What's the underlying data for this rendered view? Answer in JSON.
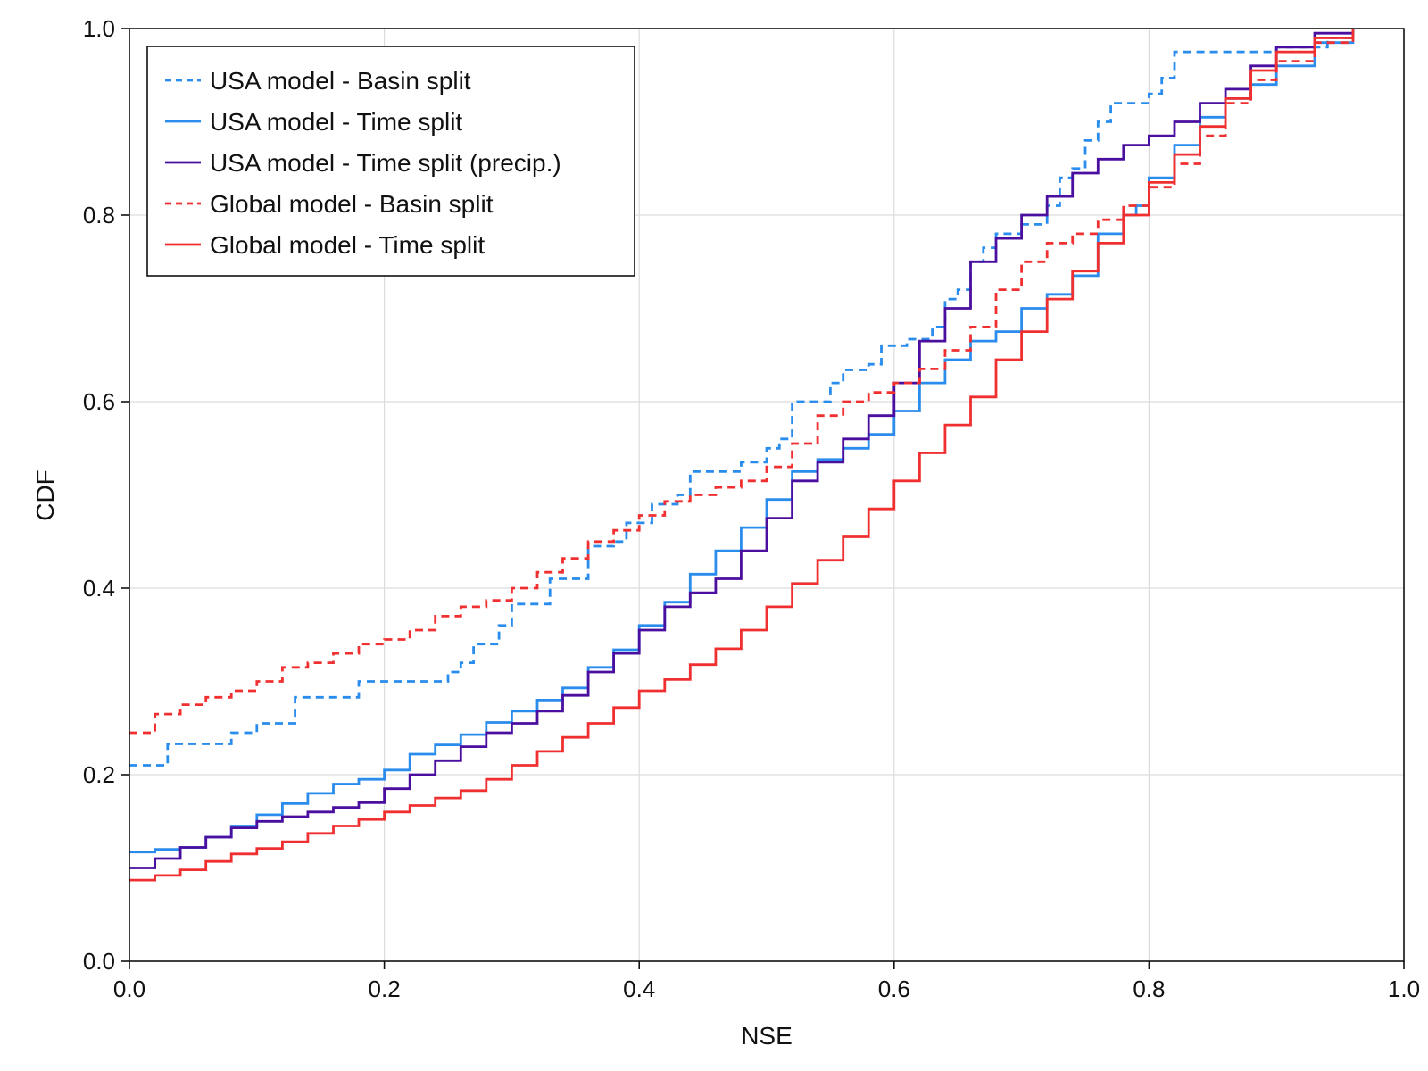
{
  "chart_data": {
    "type": "line",
    "xlabel": "NSE",
    "ylabel": "CDF",
    "xlim": [
      0,
      1
    ],
    "ylim": [
      0,
      1
    ],
    "xticks": [
      "0.0",
      "0.2",
      "0.4",
      "0.6",
      "0.8",
      "1.0"
    ],
    "yticks": [
      "0.0",
      "0.2",
      "0.4",
      "0.6",
      "0.8",
      "1.0"
    ],
    "grid": true,
    "legend_position": "top-left",
    "series": [
      {
        "name": "USA model - Basin split",
        "color": "#2a8cec",
        "dash": "dashed",
        "points": [
          [
            0.0,
            0.21
          ],
          [
            0.02,
            0.21
          ],
          [
            0.03,
            0.233
          ],
          [
            0.07,
            0.233
          ],
          [
            0.08,
            0.245
          ],
          [
            0.1,
            0.255
          ],
          [
            0.13,
            0.26
          ],
          [
            0.13,
            0.283
          ],
          [
            0.17,
            0.283
          ],
          [
            0.18,
            0.3
          ],
          [
            0.22,
            0.3
          ],
          [
            0.24,
            0.3
          ],
          [
            0.25,
            0.31
          ],
          [
            0.26,
            0.32
          ],
          [
            0.27,
            0.34
          ],
          [
            0.29,
            0.36
          ],
          [
            0.3,
            0.383
          ],
          [
            0.33,
            0.383
          ],
          [
            0.33,
            0.41
          ],
          [
            0.35,
            0.41
          ],
          [
            0.36,
            0.445
          ],
          [
            0.38,
            0.45
          ],
          [
            0.39,
            0.47
          ],
          [
            0.41,
            0.49
          ],
          [
            0.43,
            0.5
          ],
          [
            0.44,
            0.525
          ],
          [
            0.47,
            0.525
          ],
          [
            0.48,
            0.535
          ],
          [
            0.49,
            0.535
          ],
          [
            0.5,
            0.55
          ],
          [
            0.51,
            0.56
          ],
          [
            0.52,
            0.6
          ],
          [
            0.53,
            0.6
          ],
          [
            0.55,
            0.62
          ],
          [
            0.56,
            0.634
          ],
          [
            0.58,
            0.64
          ],
          [
            0.59,
            0.66
          ],
          [
            0.61,
            0.667
          ],
          [
            0.63,
            0.68
          ],
          [
            0.64,
            0.71
          ],
          [
            0.65,
            0.72
          ],
          [
            0.66,
            0.75
          ],
          [
            0.67,
            0.765
          ],
          [
            0.68,
            0.78
          ],
          [
            0.7,
            0.79
          ],
          [
            0.72,
            0.81
          ],
          [
            0.73,
            0.84
          ],
          [
            0.74,
            0.85
          ],
          [
            0.75,
            0.88
          ],
          [
            0.76,
            0.9
          ],
          [
            0.77,
            0.92
          ],
          [
            0.8,
            0.93
          ],
          [
            0.81,
            0.947
          ],
          [
            0.82,
            0.975
          ],
          [
            0.88,
            0.975
          ],
          [
            0.9,
            0.98
          ],
          [
            0.94,
            0.99
          ],
          [
            0.96,
            1.0
          ]
        ]
      },
      {
        "name": "USA model - Time split",
        "color": "#2a8cec",
        "dash": "solid",
        "points": [
          [
            0.0,
            0.117
          ],
          [
            0.02,
            0.12
          ],
          [
            0.04,
            0.122
          ],
          [
            0.06,
            0.133
          ],
          [
            0.08,
            0.145
          ],
          [
            0.1,
            0.157
          ],
          [
            0.12,
            0.169
          ],
          [
            0.14,
            0.18
          ],
          [
            0.16,
            0.19
          ],
          [
            0.18,
            0.195
          ],
          [
            0.2,
            0.205
          ],
          [
            0.22,
            0.222
          ],
          [
            0.24,
            0.232
          ],
          [
            0.26,
            0.243
          ],
          [
            0.28,
            0.256
          ],
          [
            0.3,
            0.268
          ],
          [
            0.32,
            0.28
          ],
          [
            0.34,
            0.293
          ],
          [
            0.36,
            0.315
          ],
          [
            0.38,
            0.334
          ],
          [
            0.4,
            0.36
          ],
          [
            0.42,
            0.385
          ],
          [
            0.44,
            0.415
          ],
          [
            0.46,
            0.44
          ],
          [
            0.48,
            0.465
          ],
          [
            0.5,
            0.495
          ],
          [
            0.52,
            0.525
          ],
          [
            0.54,
            0.538
          ],
          [
            0.56,
            0.55
          ],
          [
            0.58,
            0.565
          ],
          [
            0.6,
            0.59
          ],
          [
            0.62,
            0.62
          ],
          [
            0.64,
            0.645
          ],
          [
            0.66,
            0.665
          ],
          [
            0.68,
            0.675
          ],
          [
            0.7,
            0.7
          ],
          [
            0.72,
            0.715
          ],
          [
            0.74,
            0.735
          ],
          [
            0.76,
            0.78
          ],
          [
            0.78,
            0.8
          ],
          [
            0.79,
            0.81
          ],
          [
            0.8,
            0.84
          ],
          [
            0.82,
            0.875
          ],
          [
            0.84,
            0.905
          ],
          [
            0.86,
            0.925
          ],
          [
            0.88,
            0.94
          ],
          [
            0.9,
            0.96
          ],
          [
            0.93,
            0.985
          ],
          [
            0.96,
            1.0
          ]
        ]
      },
      {
        "name": "USA model - Time split (precip.)",
        "color": "#4b0fa0",
        "dash": "solid",
        "points": [
          [
            0.0,
            0.1
          ],
          [
            0.02,
            0.11
          ],
          [
            0.04,
            0.122
          ],
          [
            0.06,
            0.133
          ],
          [
            0.08,
            0.143
          ],
          [
            0.1,
            0.15
          ],
          [
            0.12,
            0.155
          ],
          [
            0.14,
            0.16
          ],
          [
            0.16,
            0.165
          ],
          [
            0.18,
            0.17
          ],
          [
            0.2,
            0.185
          ],
          [
            0.22,
            0.2
          ],
          [
            0.24,
            0.215
          ],
          [
            0.26,
            0.23
          ],
          [
            0.28,
            0.245
          ],
          [
            0.3,
            0.255
          ],
          [
            0.32,
            0.268
          ],
          [
            0.34,
            0.285
          ],
          [
            0.36,
            0.31
          ],
          [
            0.38,
            0.33
          ],
          [
            0.4,
            0.355
          ],
          [
            0.42,
            0.38
          ],
          [
            0.44,
            0.395
          ],
          [
            0.46,
            0.41
          ],
          [
            0.48,
            0.44
          ],
          [
            0.5,
            0.475
          ],
          [
            0.52,
            0.515
          ],
          [
            0.54,
            0.535
          ],
          [
            0.56,
            0.56
          ],
          [
            0.58,
            0.585
          ],
          [
            0.6,
            0.62
          ],
          [
            0.62,
            0.665
          ],
          [
            0.64,
            0.7
          ],
          [
            0.66,
            0.75
          ],
          [
            0.68,
            0.775
          ],
          [
            0.7,
            0.8
          ],
          [
            0.72,
            0.82
          ],
          [
            0.74,
            0.845
          ],
          [
            0.76,
            0.86
          ],
          [
            0.78,
            0.875
          ],
          [
            0.8,
            0.885
          ],
          [
            0.82,
            0.9
          ],
          [
            0.84,
            0.92
          ],
          [
            0.86,
            0.935
          ],
          [
            0.88,
            0.96
          ],
          [
            0.9,
            0.98
          ],
          [
            0.93,
            0.995
          ],
          [
            0.96,
            1.0
          ]
        ]
      },
      {
        "name": "Global model - Basin split",
        "color": "#f03030",
        "dash": "dashed",
        "points": [
          [
            0.0,
            0.245
          ],
          [
            0.02,
            0.265
          ],
          [
            0.04,
            0.275
          ],
          [
            0.06,
            0.283
          ],
          [
            0.08,
            0.29
          ],
          [
            0.1,
            0.3
          ],
          [
            0.12,
            0.315
          ],
          [
            0.14,
            0.32
          ],
          [
            0.16,
            0.33
          ],
          [
            0.18,
            0.34
          ],
          [
            0.2,
            0.345
          ],
          [
            0.22,
            0.355
          ],
          [
            0.24,
            0.37
          ],
          [
            0.26,
            0.38
          ],
          [
            0.28,
            0.387
          ],
          [
            0.3,
            0.4
          ],
          [
            0.32,
            0.417
          ],
          [
            0.34,
            0.432
          ],
          [
            0.36,
            0.45
          ],
          [
            0.38,
            0.462
          ],
          [
            0.4,
            0.478
          ],
          [
            0.42,
            0.493
          ],
          [
            0.44,
            0.5
          ],
          [
            0.46,
            0.508
          ],
          [
            0.48,
            0.515
          ],
          [
            0.5,
            0.53
          ],
          [
            0.52,
            0.555
          ],
          [
            0.54,
            0.585
          ],
          [
            0.56,
            0.6
          ],
          [
            0.58,
            0.61
          ],
          [
            0.6,
            0.62
          ],
          [
            0.62,
            0.635
          ],
          [
            0.64,
            0.655
          ],
          [
            0.66,
            0.68
          ],
          [
            0.68,
            0.72
          ],
          [
            0.7,
            0.75
          ],
          [
            0.72,
            0.77
          ],
          [
            0.74,
            0.78
          ],
          [
            0.76,
            0.795
          ],
          [
            0.78,
            0.81
          ],
          [
            0.8,
            0.83
          ],
          [
            0.82,
            0.855
          ],
          [
            0.84,
            0.885
          ],
          [
            0.86,
            0.92
          ],
          [
            0.88,
            0.945
          ],
          [
            0.9,
            0.965
          ],
          [
            0.93,
            0.985
          ],
          [
            0.96,
            1.0
          ]
        ]
      },
      {
        "name": "Global model - Time split",
        "color": "#f03030",
        "dash": "solid",
        "points": [
          [
            0.0,
            0.087
          ],
          [
            0.02,
            0.092
          ],
          [
            0.04,
            0.098
          ],
          [
            0.06,
            0.107
          ],
          [
            0.08,
            0.115
          ],
          [
            0.1,
            0.121
          ],
          [
            0.12,
            0.128
          ],
          [
            0.14,
            0.137
          ],
          [
            0.16,
            0.145
          ],
          [
            0.18,
            0.152
          ],
          [
            0.2,
            0.16
          ],
          [
            0.22,
            0.167
          ],
          [
            0.24,
            0.175
          ],
          [
            0.26,
            0.183
          ],
          [
            0.28,
            0.195
          ],
          [
            0.3,
            0.21
          ],
          [
            0.32,
            0.225
          ],
          [
            0.34,
            0.24
          ],
          [
            0.36,
            0.255
          ],
          [
            0.38,
            0.272
          ],
          [
            0.4,
            0.29
          ],
          [
            0.42,
            0.302
          ],
          [
            0.44,
            0.318
          ],
          [
            0.46,
            0.335
          ],
          [
            0.48,
            0.355
          ],
          [
            0.5,
            0.38
          ],
          [
            0.52,
            0.405
          ],
          [
            0.54,
            0.43
          ],
          [
            0.56,
            0.455
          ],
          [
            0.58,
            0.485
          ],
          [
            0.6,
            0.515
          ],
          [
            0.62,
            0.545
          ],
          [
            0.64,
            0.575
          ],
          [
            0.66,
            0.605
          ],
          [
            0.68,
            0.645
          ],
          [
            0.7,
            0.675
          ],
          [
            0.72,
            0.71
          ],
          [
            0.74,
            0.74
          ],
          [
            0.76,
            0.77
          ],
          [
            0.78,
            0.8
          ],
          [
            0.8,
            0.835
          ],
          [
            0.82,
            0.865
          ],
          [
            0.84,
            0.895
          ],
          [
            0.86,
            0.925
          ],
          [
            0.88,
            0.955
          ],
          [
            0.9,
            0.975
          ],
          [
            0.93,
            0.99
          ],
          [
            0.96,
            1.0
          ]
        ]
      }
    ]
  }
}
